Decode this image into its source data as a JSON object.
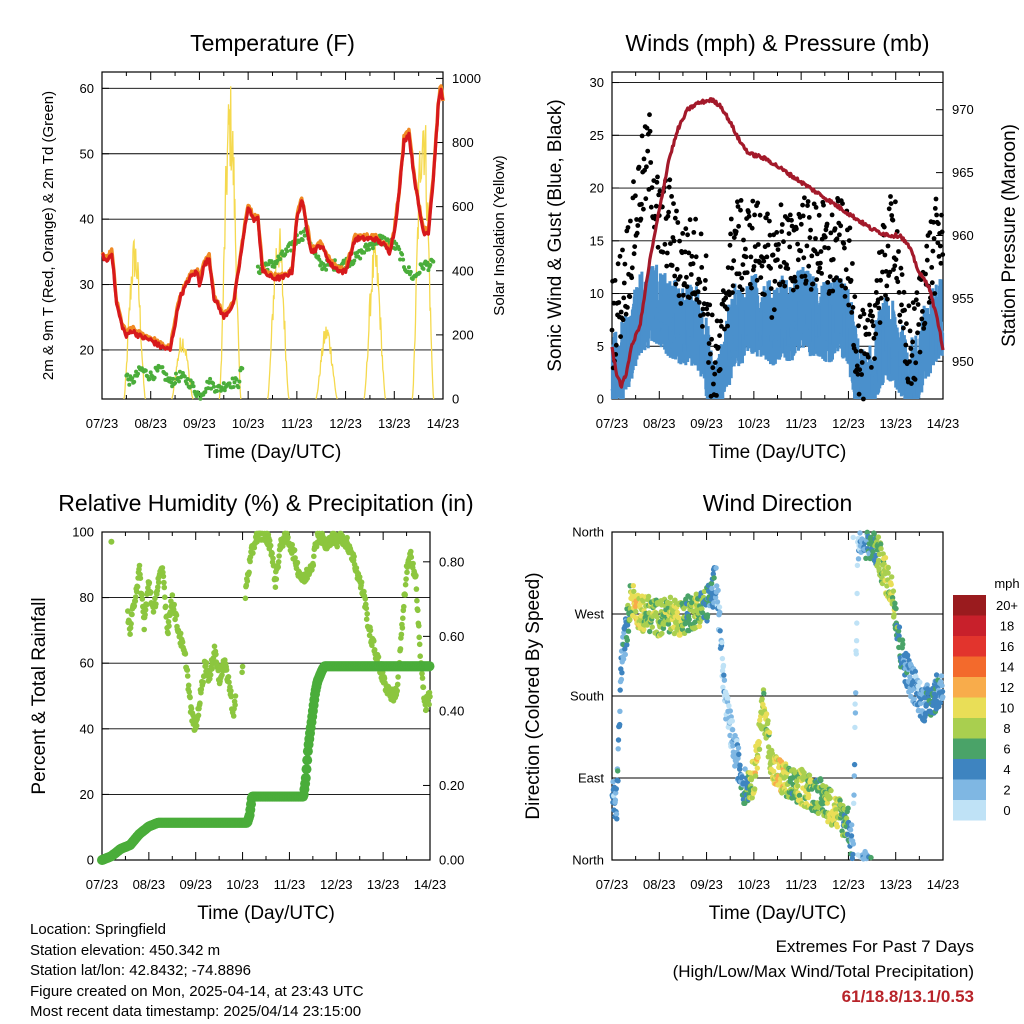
{
  "figure": {
    "info": {
      "location": "Location: Springfield",
      "elevation": "Station elevation: 450.342 m",
      "latlon": "Station lat/lon: 42.8432; -74.8896",
      "created": "Figure created on Mon, 2025-04-14, at 23:43 UTC",
      "recent": "Most recent data timestamp: 2025/04/14 23:15:00"
    },
    "extremes": {
      "title": "Extremes For Past 7 Days",
      "subtitle": "(High/Low/Max Wind/Total Precipitation)",
      "values": "61/18.8/13.1/0.53"
    }
  },
  "chart_data": [
    {
      "id": "temperature",
      "type": "line",
      "title": "Temperature (F)",
      "xlabel": "Time (Day/UTC)",
      "ylabel": "2m & 9m T (Red, Orange) & 2m Td (Green)",
      "ylabel_right": "Solar Insolation (Yellow)",
      "x_ticks": [
        "07/23",
        "08/23",
        "09/23",
        "10/23",
        "11/23",
        "12/23",
        "13/23",
        "14/23"
      ],
      "xlim": [
        0,
        7
      ],
      "ylim": [
        12.5,
        62.5
      ],
      "y_ticks": [
        20,
        30,
        40,
        50,
        60
      ],
      "ylim_right": [
        0,
        1020
      ],
      "y_ticks_right": [
        0,
        200,
        400,
        600,
        800,
        1000
      ],
      "grid": true,
      "colors": {
        "t2m": "#d7191c",
        "t9m": "#f08a24",
        "td": "#4aad3a",
        "solar": "#f5d94e"
      },
      "series": [
        {
          "key": "t2m",
          "x": [
            0,
            0.1,
            0.2,
            0.3,
            0.4,
            0.5,
            0.6,
            0.8,
            1.0,
            1.2,
            1.4,
            1.6,
            1.8,
            1.95,
            2.0,
            2.1,
            2.2,
            2.3,
            2.5,
            2.7,
            2.9,
            3.0,
            3.1,
            3.2,
            3.3,
            3.5,
            3.7,
            3.9,
            4.0,
            4.1,
            4.3,
            4.5,
            4.7,
            4.9,
            5.0,
            5.2,
            5.4,
            5.6,
            5.8,
            5.9,
            6.0,
            6.1,
            6.2,
            6.3,
            6.4,
            6.5,
            6.6,
            6.7,
            6.8,
            6.9,
            6.95,
            7.0
          ],
          "y": [
            34.5,
            33.5,
            35,
            27,
            24,
            22,
            23,
            22,
            21.5,
            20.5,
            20,
            28,
            31,
            32,
            30,
            33,
            34,
            28,
            25,
            27,
            37,
            42,
            40,
            40,
            32,
            31,
            31,
            32,
            40,
            43,
            35,
            36,
            33,
            32,
            32,
            37,
            37,
            37,
            36,
            35,
            38,
            44,
            52,
            53,
            47,
            42,
            38,
            38,
            46,
            57,
            60,
            58
          ]
        },
        {
          "key": "t9m",
          "x": [
            0,
            0.1,
            0.2,
            0.3,
            0.4,
            0.5,
            0.6,
            0.8,
            1.0,
            1.2,
            1.4,
            1.6,
            1.8,
            1.95,
            2.0,
            2.1,
            2.2,
            2.3,
            2.5,
            2.7,
            2.9,
            3.0,
            3.1,
            3.2,
            3.3,
            3.5,
            3.7,
            3.9,
            4.0,
            4.1,
            4.3,
            4.5,
            4.7,
            4.9,
            5.0,
            5.2,
            5.4,
            5.6,
            5.8,
            5.9,
            6.0,
            6.1,
            6.2,
            6.3,
            6.4,
            6.5,
            6.6,
            6.7,
            6.8,
            6.9,
            6.95,
            7.0
          ],
          "y": [
            34.8,
            33.8,
            35.3,
            27.4,
            24.4,
            22.4,
            23.4,
            22.4,
            21.9,
            20.9,
            20.4,
            28.4,
            31.4,
            32.4,
            30.4,
            33.4,
            34.4,
            28.4,
            25.4,
            27.4,
            37.4,
            42.4,
            40.4,
            40.4,
            32.4,
            31.4,
            31.4,
            32.4,
            40.4,
            43.4,
            35.4,
            36.4,
            33.4,
            32.4,
            32.4,
            37.4,
            37.4,
            37.4,
            36.4,
            35.4,
            38.4,
            44.4,
            52.4,
            53.4,
            47.4,
            42.4,
            38.4,
            38.4,
            46.4,
            57.4,
            60.4,
            58.4
          ]
        },
        {
          "key": "td",
          "x": [
            0.5,
            0.6,
            0.8,
            1.0,
            1.2,
            1.4,
            1.6,
            1.8,
            2.0,
            2.2,
            2.4,
            2.6,
            2.8,
            2.9
          ],
          "y": [
            16,
            15,
            17,
            16,
            17,
            15,
            16,
            15,
            13,
            15,
            14,
            15,
            15,
            18
          ],
          "x2": [
            3.2,
            3.3,
            3.5,
            3.8,
            4.0,
            4.2,
            4.4,
            4.5,
            4.7,
            4.9,
            5.2,
            5.5,
            5.7,
            6.0,
            6.1,
            6.2,
            6.3,
            6.4,
            6.5,
            6.6,
            6.8
          ],
          "y2": [
            32,
            33,
            33,
            35,
            37,
            38,
            34,
            33,
            33,
            33,
            34,
            36,
            37,
            36,
            35,
            33,
            32,
            31,
            32,
            33,
            33
          ]
        },
        {
          "key": "solar",
          "days": [
            0.67,
            1.65,
            2.63,
            3.62,
            4.61,
            5.6,
            6.59
          ],
          "peaks": [
            520,
            210,
            1000,
            560,
            240,
            500,
            990
          ]
        }
      ]
    },
    {
      "id": "winds",
      "type": "scatter",
      "title": "Winds (mph) & Pressure (mb)",
      "xlabel": "Time (Day/UTC)",
      "ylabel": "Sonic Wind & Gust (Blue, Black)",
      "ylabel_right": "Station Pressure (Maroon)",
      "x_ticks": [
        "07/23",
        "08/23",
        "09/23",
        "10/23",
        "11/23",
        "12/23",
        "13/23",
        "14/23"
      ],
      "xlim": [
        0,
        7
      ],
      "ylim": [
        0,
        31
      ],
      "y_ticks": [
        0,
        5,
        10,
        15,
        20,
        25,
        30
      ],
      "ylim_right": [
        947,
        973
      ],
      "y_ticks_right": [
        950,
        955,
        960,
        965,
        970
      ],
      "grid": true,
      "colors": {
        "wind": "#4a90cc",
        "gust": "#000000",
        "pressure": "#a3192a"
      },
      "series": [
        {
          "key": "wind_mean",
          "x": [
            0,
            0.3,
            0.6,
            0.9,
            1.2,
            1.5,
            1.8,
            2.0,
            2.1,
            2.2,
            2.3,
            2.4,
            2.6,
            2.8,
            3.0,
            3.2,
            3.4,
            3.6,
            3.8,
            4.0,
            4.2,
            4.4,
            4.6,
            4.8,
            5.0,
            5.2,
            5.4,
            5.6,
            5.8,
            6.0,
            6.1,
            6.2,
            6.4,
            6.6,
            6.8,
            7.0
          ],
          "y": [
            3,
            5,
            9,
            10,
            9,
            8,
            8,
            5,
            2,
            1,
            2,
            5,
            8,
            8,
            9,
            9,
            8,
            9,
            8,
            10,
            9,
            9,
            8,
            9,
            8,
            3,
            1,
            5,
            7,
            6,
            5,
            3,
            3,
            6,
            8,
            9
          ]
        },
        {
          "key": "gust",
          "x": [
            0,
            0.3,
            0.6,
            0.8,
            1.0,
            1.2,
            1.4,
            1.6,
            1.8,
            2.0,
            2.1,
            2.2,
            2.3,
            2.4,
            2.6,
            2.8,
            3.0,
            3.2,
            3.4,
            3.6,
            3.8,
            4.0,
            4.2,
            4.4,
            4.6,
            4.8,
            5.0,
            5.2,
            5.4,
            5.6,
            5.8,
            6.0,
            6.1,
            6.2,
            6.4,
            6.6,
            6.8,
            7.0
          ],
          "y": [
            7,
            12,
            20,
            23,
            16,
            17,
            13,
            13,
            13,
            10,
            4,
            3,
            4,
            10,
            15,
            14,
            15,
            14,
            12,
            15,
            13,
            16,
            14,
            15,
            13,
            15,
            13,
            5,
            3,
            10,
            13,
            17,
            9,
            5,
            5,
            11,
            14,
            16
          ]
        },
        {
          "key": "pressure",
          "x": [
            0,
            0.1,
            0.2,
            0.3,
            0.4,
            0.6,
            0.8,
            1.0,
            1.2,
            1.4,
            1.6,
            1.8,
            2.0,
            2.1,
            2.3,
            2.5,
            2.7,
            2.9,
            3.1,
            3.3,
            3.5,
            3.7,
            3.9,
            4.1,
            4.3,
            4.5,
            4.7,
            4.9,
            5.1,
            5.3,
            5.5,
            5.7,
            5.9,
            6.1,
            6.3,
            6.5,
            6.7,
            6.9,
            7.0
          ],
          "y": [
            951,
            949,
            948,
            949,
            951,
            953,
            958,
            962,
            966,
            968.5,
            970,
            970.5,
            970.7,
            970.8,
            970.3,
            969,
            967.5,
            966.5,
            966.3,
            966,
            965.5,
            965,
            964.5,
            964,
            963.5,
            963,
            962.5,
            962,
            961.5,
            961,
            960.5,
            960.2,
            960,
            960,
            959,
            957,
            956,
            953,
            951
          ]
        }
      ]
    },
    {
      "id": "rh_precip",
      "type": "scatter",
      "title": "Relative Humidity (%) & Precipitation (in)",
      "xlabel": "Time (Day/UTC)",
      "ylabel": "Percent & Total Rainfall",
      "x_ticks": [
        "07/23",
        "08/23",
        "09/23",
        "10/23",
        "11/23",
        "12/23",
        "13/23",
        "14/23"
      ],
      "xlim": [
        0,
        7
      ],
      "ylim": [
        0,
        100
      ],
      "y_ticks": [
        0,
        20,
        40,
        60,
        80,
        100
      ],
      "ylim_right": [
        0,
        0.88
      ],
      "y_ticks_right": [
        "0.00",
        "0.20",
        "0.40",
        "0.60",
        "0.80"
      ],
      "grid": true,
      "colors": {
        "rh": "#8cc63f",
        "precip": "#4aad3a"
      },
      "series": [
        {
          "key": "rh",
          "x": [
            0.2,
            0.55,
            0.6,
            0.7,
            0.8,
            0.9,
            1.0,
            1.1,
            1.2,
            1.3,
            1.4,
            1.5,
            1.6,
            1.8,
            1.9,
            2.0,
            2.1,
            2.2,
            2.3,
            2.4,
            2.5,
            2.6,
            2.7,
            2.8,
            3.0,
            3.05,
            3.1,
            3.2,
            3.3,
            3.4,
            3.5,
            3.6,
            3.7,
            3.8,
            3.9,
            4.0,
            4.1,
            4.2,
            4.3,
            4.4,
            4.5,
            4.6,
            4.7,
            4.8,
            4.9,
            5.0,
            5.1,
            5.2,
            5.3,
            5.4,
            5.5,
            5.6,
            5.7,
            5.8,
            5.9,
            6.0,
            6.1,
            6.2,
            6.3,
            6.4,
            6.5,
            6.6,
            6.7,
            6.8,
            6.9,
            7.0
          ],
          "y": [
            97,
            74,
            70,
            80,
            88,
            72,
            85,
            75,
            85,
            88,
            70,
            80,
            72,
            60,
            45,
            40,
            50,
            60,
            55,
            65,
            55,
            60,
            55,
            45,
            58,
            80,
            86,
            94,
            99,
            99,
            99,
            96,
            85,
            95,
            99,
            97,
            93,
            88,
            85,
            88,
            91,
            99,
            98,
            95,
            99,
            97,
            99,
            97,
            95,
            90,
            85,
            80,
            70,
            65,
            60,
            55,
            52,
            50,
            52,
            70,
            88,
            93,
            85,
            60,
            47,
            50
          ]
        },
        {
          "key": "precip",
          "x": [
            0,
            0.2,
            0.4,
            0.6,
            0.8,
            1.0,
            1.2,
            1.4,
            1.6,
            1.8,
            2.0,
            2.2,
            2.4,
            2.6,
            2.8,
            3.0,
            3.1,
            3.15,
            3.2,
            3.5,
            3.8,
            4.0,
            4.2,
            4.3,
            4.35,
            4.4,
            4.5,
            4.55,
            4.6,
            4.7,
            4.75,
            4.8,
            5.0,
            5.5,
            6.0,
            6.5,
            7.0
          ],
          "y": [
            0,
            0.01,
            0.03,
            0.04,
            0.07,
            0.09,
            0.1,
            0.1,
            0.1,
            0.1,
            0.1,
            0.1,
            0.1,
            0.1,
            0.1,
            0.1,
            0.1,
            0.12,
            0.17,
            0.17,
            0.17,
            0.17,
            0.17,
            0.17,
            0.22,
            0.3,
            0.4,
            0.45,
            0.48,
            0.51,
            0.52,
            0.52,
            0.52,
            0.52,
            0.52,
            0.52,
            0.52
          ]
        }
      ]
    },
    {
      "id": "wind_direction",
      "type": "scatter",
      "title": "Wind Direction",
      "xlabel": "Time (Day/UTC)",
      "ylabel": "Direction (Colored By Speed)",
      "x_ticks": [
        "07/23",
        "08/23",
        "09/23",
        "10/23",
        "11/23",
        "12/23",
        "13/23",
        "14/23"
      ],
      "xlim": [
        0,
        7
      ],
      "ylim": [
        0,
        360
      ],
      "y_tick_values": [
        0,
        90,
        180,
        270,
        360
      ],
      "y_ticks": [
        "North",
        "East",
        "South",
        "West",
        "North"
      ],
      "grid": true,
      "legend": {
        "title": "mph",
        "placement": "right",
        "labels": [
          "20+",
          "18",
          "16",
          "14",
          "12",
          "10",
          "8",
          "6",
          "4",
          "2",
          "0"
        ],
        "colors": [
          "#9a1b1e",
          "#c8202b",
          "#e2342d",
          "#f36a2c",
          "#f8ac4b",
          "#e9de57",
          "#a9cf4f",
          "#4aa368",
          "#3e84c0",
          "#7fb7e3",
          "#bfe2f6"
        ]
      },
      "series": [
        {
          "key": "direction",
          "x": [
            0,
            0.1,
            0.2,
            0.3,
            0.4,
            0.5,
            0.6,
            0.8,
            1.0,
            1.2,
            1.4,
            1.6,
            1.8,
            2.0,
            2.1,
            2.2,
            2.4,
            2.6,
            2.8,
            3.0,
            3.2,
            3.4,
            3.6,
            3.8,
            4.0,
            4.2,
            4.4,
            4.6,
            4.8,
            5.0,
            5.1,
            5.2,
            5.4,
            5.6,
            5.8,
            5.95,
            6.1,
            6.3,
            6.5,
            6.6,
            6.8,
            7.0
          ],
          "y": [
            70,
            60,
            220,
            250,
            290,
            280,
            270,
            270,
            265,
            270,
            265,
            270,
            275,
            280,
            290,
            310,
            170,
            120,
            80,
            90,
            170,
            100,
            90,
            80,
            80,
            75,
            70,
            60,
            50,
            40,
            10,
            350,
            350,
            340,
            310,
            290,
            230,
            200,
            180,
            170,
            180,
            190
          ],
          "speed": [
            2,
            4,
            3,
            4,
            8,
            10,
            9,
            8,
            7,
            8,
            9,
            6,
            8,
            5,
            4,
            3,
            1,
            2,
            4,
            10,
            8,
            9,
            10,
            6,
            9,
            8,
            6,
            9,
            8,
            5,
            2,
            1,
            4,
            6,
            9,
            8,
            5,
            3,
            2,
            4,
            5,
            3
          ]
        }
      ]
    }
  ]
}
